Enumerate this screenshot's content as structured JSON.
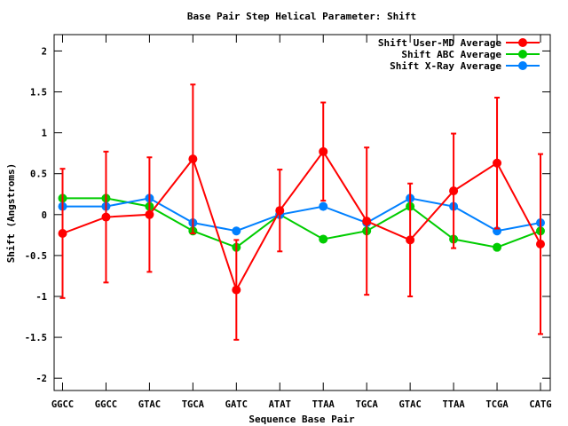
{
  "chart_data": {
    "type": "line",
    "title": "Base Pair Step Helical Parameter: Shift",
    "xlabel": "Sequence Base Pair",
    "ylabel": "Shift (Angstroms)",
    "ylim": [
      -2.15,
      2.2
    ],
    "yticks": [
      2,
      1.5,
      1,
      0.5,
      0,
      -0.5,
      -1,
      -1.5,
      -2
    ],
    "ytick_labels": [
      "2",
      "1.5",
      "1",
      "0.5",
      "0",
      "-0.5",
      "-1",
      "-1.5",
      "-2"
    ],
    "categories": [
      "GGCC",
      "GGCC",
      "GTAC",
      "TGCA",
      "GATC",
      "ATAT",
      "TTAA",
      "TGCA",
      "GTAC",
      "TTAA",
      "TCGA",
      "CATG"
    ],
    "grid": false,
    "legend_position": "top-right",
    "series": [
      {
        "name": "Shift User-MD Average",
        "color": "#ff0000",
        "values": [
          -0.23,
          -0.03,
          0.0,
          0.68,
          -0.92,
          0.05,
          0.77,
          -0.08,
          -0.31,
          0.29,
          0.63,
          -0.36
        ],
        "errors": [
          0.79,
          0.8,
          0.7,
          0.91,
          0.61,
          0.5,
          0.6,
          0.9,
          0.69,
          0.7,
          0.8,
          1.1
        ]
      },
      {
        "name": "Shift ABC Average",
        "color": "#00cc00",
        "values": [
          0.2,
          0.2,
          0.1,
          -0.2,
          -0.4,
          0.0,
          -0.3,
          -0.2,
          0.1,
          -0.3,
          -0.4,
          -0.2
        ]
      },
      {
        "name": "Shift X-Ray Average",
        "color": "#0080ff",
        "values": [
          0.1,
          0.1,
          0.2,
          -0.1,
          -0.2,
          0.0,
          0.1,
          -0.1,
          0.2,
          0.1,
          -0.2,
          -0.1
        ]
      }
    ]
  }
}
